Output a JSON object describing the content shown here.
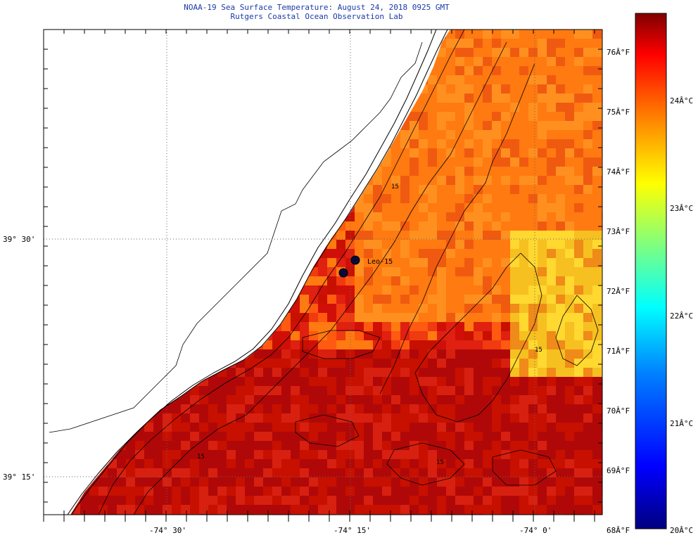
{
  "header": {
    "title": "NOAA-19 Sea Surface Temperature:  August 24, 2018 0925 GMT",
    "subtitle": "Rutgers Coastal Ocean Observation Lab"
  },
  "axes": {
    "lon_labels": [
      "-74° 30'",
      "-74° 15'",
      "-74° 0'"
    ],
    "lat_labels": [
      "39° 30'",
      "39° 15'"
    ]
  },
  "colorbar": {
    "fahrenheit_labels": [
      "76Â°F",
      "75Â°F",
      "74Â°F",
      "73Â°F",
      "72Â°F",
      "71Â°F",
      "70Â°F",
      "69Â°F",
      "68Â°F"
    ],
    "celsius_labels": [
      "24Â°C",
      "23Â°C",
      "22Â°C",
      "21Â°C",
      "20Â°C"
    ],
    "colors": [
      "#00007f",
      "#0000ff",
      "#007fff",
      "#00ffff",
      "#7fff7f",
      "#ffff00",
      "#ff7f00",
      "#ff0000",
      "#7f0000"
    ]
  },
  "markers": {
    "station_label": "Leo-15"
  },
  "map": {
    "land_color": "#ffffff",
    "contour_labels": [
      "15",
      "15",
      "15",
      "15"
    ]
  }
}
